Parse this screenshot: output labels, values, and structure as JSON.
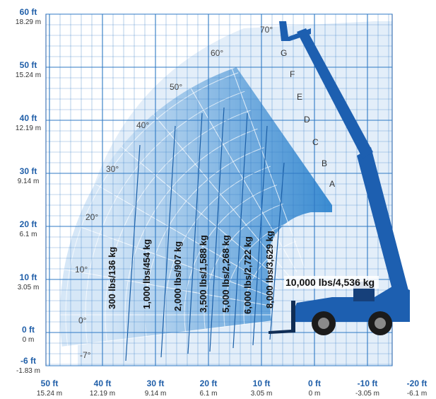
{
  "y_axis": {
    "ticks": [
      {
        "ft": "60 ft",
        "m": "18.29 m"
      },
      {
        "ft": "50 ft",
        "m": "15.24 m"
      },
      {
        "ft": "40 ft",
        "m": "12.19 m"
      },
      {
        "ft": "30 ft",
        "m": "9.14 m"
      },
      {
        "ft": "20 ft",
        "m": "6.1 m"
      },
      {
        "ft": "10 ft",
        "m": "3.05 m"
      },
      {
        "ft": "0 ft",
        "m": "0 m"
      },
      {
        "ft": "-6 ft",
        "m": "-1.83 m"
      }
    ]
  },
  "x_axis": {
    "ticks": [
      {
        "ft": "50 ft",
        "m": "15.24 m"
      },
      {
        "ft": "40 ft",
        "m": "12.19 m"
      },
      {
        "ft": "30 ft",
        "m": "9.14 m"
      },
      {
        "ft": "20 ft",
        "m": "6.1 m"
      },
      {
        "ft": "10 ft",
        "m": "3.05 m"
      },
      {
        "ft": "0 ft",
        "m": "0 m"
      },
      {
        "ft": "-10 ft",
        "m": "-3.05 m"
      },
      {
        "ft": "-20 ft",
        "m": "-6.1 m"
      }
    ]
  },
  "boom_angles": [
    "70°",
    "60°",
    "50°",
    "40°",
    "30°",
    "20°",
    "10°",
    "0°",
    "-7°"
  ],
  "extension_zones": [
    "G",
    "F",
    "E",
    "D",
    "C",
    "B",
    "A"
  ],
  "load_capacities": [
    "300 lbs/136 kg",
    "1,000 lbs/454 kg",
    "2,000 lbs/907 kg",
    "3,500 lbs/1,588 kg",
    "5,000 lbs/2,268 kg",
    "6,000 lbs/2,722 kg",
    "8,000 lbs/3,629 kg",
    "10,000 lbs/4,536 kg"
  ],
  "colors": {
    "grid": "#2f79c4",
    "envelope": "#e3eef9",
    "zone_light": "#d0e3f5",
    "zone_dark": "#3f8fd3",
    "machine": "#1d5fb0",
    "tick_ft": "#1f5ea8"
  },
  "icons": {
    "machine": "telehandler-icon"
  }
}
